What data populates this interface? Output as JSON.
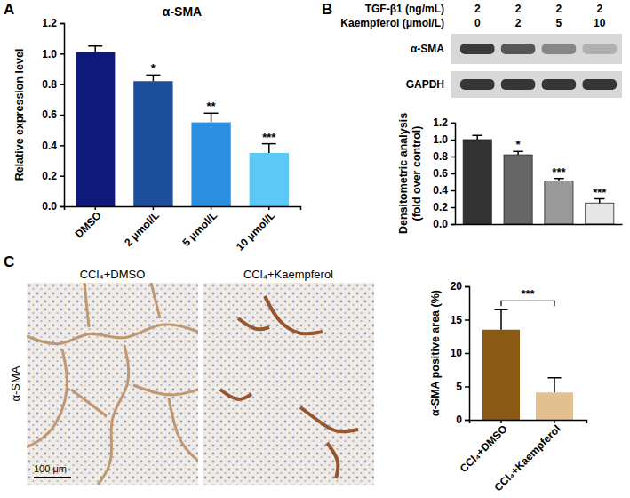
{
  "panels": [
    "A",
    "B",
    "C"
  ],
  "chart_data": [
    {
      "type": "bar",
      "title": "α-SMA",
      "y_label": "Relative expression level",
      "categories": [
        "DMSO",
        "2 μmol/L",
        "5 μmol/L",
        "10 μmol/L"
      ],
      "values": [
        1.01,
        0.82,
        0.55,
        0.35
      ],
      "errors": [
        0.04,
        0.04,
        0.06,
        0.06
      ],
      "annotations": [
        null,
        "*",
        "**",
        "***"
      ],
      "colors": [
        "#0d1a7a",
        "#1d4e9c",
        "#2a8fe0",
        "#5bc8f5"
      ],
      "ylim": [
        0,
        1.2
      ],
      "yticks": [
        {
          "value": 0,
          "label": "0.0"
        },
        0.2,
        0.4,
        0.6,
        0.8,
        {
          "value": 1,
          "label": "1.0"
        },
        1.2
      ]
    },
    {
      "type": "bar",
      "y_label": [
        "Densitometric analysis",
        "(fold over control)"
      ],
      "categories": [
        null,
        null,
        null,
        null
      ],
      "values": [
        1.0,
        0.82,
        0.51,
        0.25
      ],
      "errors": [
        0.05,
        0.04,
        0.03,
        0.05
      ],
      "annotations": [
        null,
        "*",
        "***",
        "***"
      ],
      "colors": [
        "#333333",
        "#666666",
        "#9a9a9a",
        "#e6e6e6"
      ],
      "ylim": [
        0,
        1.2
      ],
      "yticks": [
        {
          "value": 0,
          "label": "0.0"
        },
        0.2,
        0.4,
        0.6,
        0.8,
        {
          "value": 1,
          "label": "1.0"
        },
        1.2
      ],
      "tick_labels": "y"
    },
    {
      "type": "bar",
      "y_label": "α-SMA positive area (%)",
      "categories": [
        "CCl₄+DMSO",
        "CCl₄+Kaempferol"
      ],
      "values": [
        13.5,
        4.1
      ],
      "errors": [
        3.0,
        2.2
      ],
      "bracket": "***",
      "colors": [
        "#8a5a14",
        "#e3c08f"
      ],
      "ylim": [
        0,
        20
      ],
      "yticks": [
        0,
        5,
        10,
        15,
        20
      ]
    }
  ],
  "blot": {
    "rows": [
      {
        "label": "TGF-β1 (ng/mL)",
        "values": [
          2,
          2,
          2,
          2
        ]
      },
      {
        "label": "Kaempferol (μmol/L)",
        "values": [
          0,
          2,
          5,
          10
        ]
      }
    ],
    "bands": [
      "α-SMA",
      "GAPDH"
    ]
  },
  "histology": {
    "stain": "α-SMA",
    "images": [
      "CCl₄+DMSO",
      "CCl₄+Kaempferol"
    ],
    "scale_bar": "100 μm"
  }
}
